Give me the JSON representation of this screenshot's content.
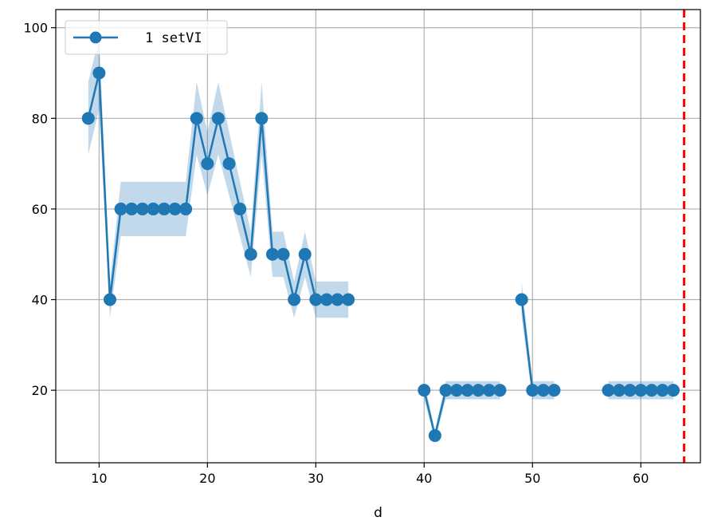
{
  "chart_data": {
    "type": "line",
    "title": "",
    "xlabel": "d",
    "ylabel": "",
    "xlim": [
      6,
      65.5
    ],
    "ylim": [
      4,
      104
    ],
    "xticks": [
      10,
      20,
      30,
      40,
      50,
      60
    ],
    "yticks": [
      20,
      40,
      60,
      80,
      100
    ],
    "grid": true,
    "legend_position": "top-left",
    "colors": {
      "series": "#1f77b4",
      "band": "#1f77b4",
      "vline": "#ff0000",
      "grid": "#b0b0b0"
    },
    "series": [
      {
        "name": "1 setVI",
        "segments": [
          [
            [
              9,
              80
            ],
            [
              10,
              90
            ],
            [
              11,
              40
            ],
            [
              12,
              60
            ],
            [
              13,
              60
            ],
            [
              14,
              60
            ],
            [
              15,
              60
            ],
            [
              16,
              60
            ],
            [
              17,
              60
            ],
            [
              18,
              60
            ],
            [
              19,
              80
            ],
            [
              20,
              70
            ],
            [
              21,
              80
            ],
            [
              22,
              70
            ],
            [
              23,
              60
            ],
            [
              24,
              50
            ],
            [
              25,
              80
            ],
            [
              26,
              50
            ],
            [
              27,
              50
            ],
            [
              28,
              40
            ],
            [
              29,
              50
            ],
            [
              30,
              40
            ],
            [
              31,
              40
            ],
            [
              32,
              40
            ],
            [
              33,
              40
            ]
          ],
          [
            [
              40,
              20
            ],
            [
              41,
              10
            ],
            [
              42,
              20
            ],
            [
              43,
              20
            ],
            [
              44,
              20
            ],
            [
              45,
              20
            ],
            [
              46,
              20
            ],
            [
              47,
              20
            ]
          ],
          [
            [
              49,
              40
            ],
            [
              50,
              20
            ],
            [
              51,
              20
            ],
            [
              52,
              20
            ]
          ],
          [
            [
              57,
              20
            ],
            [
              58,
              20
            ],
            [
              59,
              20
            ],
            [
              60,
              20
            ],
            [
              61,
              20
            ],
            [
              62,
              20
            ],
            [
              63,
              20
            ]
          ]
        ],
        "band_halfwidth": [
          [
            8,
            8,
            4,
            6,
            6,
            6,
            6,
            6,
            6,
            6,
            8,
            7,
            8,
            7,
            6,
            5,
            8,
            5,
            5,
            4,
            5,
            4,
            4,
            4,
            4
          ],
          [
            2,
            1,
            2,
            2,
            2,
            2,
            2,
            2
          ],
          [
            4,
            2,
            2,
            2
          ],
          [
            2,
            2,
            2,
            2,
            2,
            2,
            2
          ]
        ]
      }
    ],
    "vline_x": 64
  }
}
